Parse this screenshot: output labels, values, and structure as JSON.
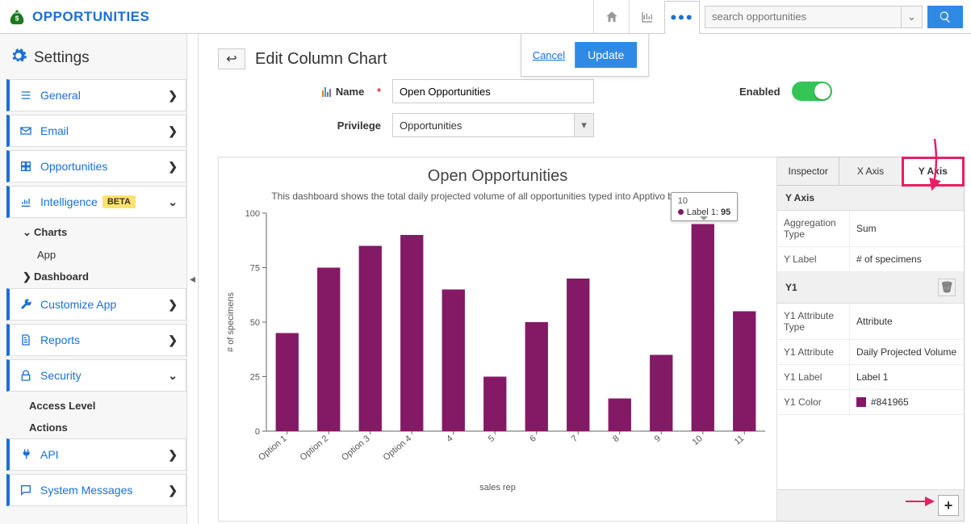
{
  "brand": {
    "title": "OPPORTUNITIES",
    "color": "#1a6fd8"
  },
  "search": {
    "placeholder": "search opportunities"
  },
  "action_strip": {
    "cancel": "Cancel",
    "update": "Update"
  },
  "edit": {
    "title": "Edit Column Chart",
    "back": "↩"
  },
  "form": {
    "name_label": "Name",
    "name_value": "Open Opportunities",
    "privilege_label": "Privilege",
    "privilege_value": "Opportunities",
    "enabled_label": "Enabled",
    "enabled": true
  },
  "sidebar": {
    "settings": "Settings",
    "items": [
      {
        "icon": "list",
        "label": "General",
        "chev": "❯"
      },
      {
        "icon": "mail",
        "label": "Email",
        "chev": "❯"
      },
      {
        "icon": "opp",
        "label": "Opportunities",
        "chev": "❯"
      },
      {
        "icon": "intel",
        "label": "Intelligence",
        "badge": "BETA",
        "chev": "⌄",
        "expanded": true
      },
      {
        "icon": "wrench",
        "label": "Customize App",
        "chev": "❯"
      },
      {
        "icon": "report",
        "label": "Reports",
        "chev": "❯"
      },
      {
        "icon": "lock",
        "label": "Security",
        "chev": "⌄"
      },
      {
        "icon": "plug",
        "label": "API",
        "chev": "❯"
      },
      {
        "icon": "msg",
        "label": "System Messages",
        "chev": "❯"
      }
    ],
    "subitems": {
      "charts": "Charts",
      "app": "App",
      "dashboard": "Dashboard"
    },
    "access_level": "Access Level",
    "actions": "Actions"
  },
  "chart": {
    "type": "bar",
    "title": "Open Opportunities",
    "description": "This dashboard shows the total daily projected volume of all opportunities typed into Apptivo by your team",
    "categories": [
      "Option 1",
      "Option 2",
      "Option 3",
      "Option 4",
      "4",
      "5",
      "6",
      "7",
      "8",
      "9",
      "10",
      "11"
    ],
    "values": [
      45,
      75,
      85,
      90,
      65,
      25,
      50,
      70,
      15,
      35,
      95,
      55
    ],
    "bar_color": "#841965",
    "ylim": [
      0,
      100
    ],
    "ytick_step": 25,
    "ylabel": "# of specimens",
    "xlabel": "sales rep",
    "axis_color": "#666666",
    "text_color": "#555555",
    "label_fontsize": 11,
    "bar_width": 0.55,
    "tooltip": {
      "index": 10,
      "x": "10",
      "series": "Label 1",
      "value": "95"
    }
  },
  "inspector": {
    "tabs": [
      "Inspector",
      "X Axis",
      "Y Axis"
    ],
    "active_tab": 2,
    "yaxis_head": "Y Axis",
    "agg_type_k": "Aggregation Type",
    "agg_type_v": "Sum",
    "ylabel_k": "Y Label",
    "ylabel_v": "# of specimens",
    "y1_head": "Y1",
    "y1_attr_type_k": "Y1 Attribute Type",
    "y1_attr_type_v": "Attribute",
    "y1_attr_k": "Y1 Attribute",
    "y1_attr_v": "Daily Projected Volume",
    "y1_label_k": "Y1 Label",
    "y1_label_v": "Label 1",
    "y1_color_k": "Y1 Color",
    "y1_color_v": "#841965"
  }
}
